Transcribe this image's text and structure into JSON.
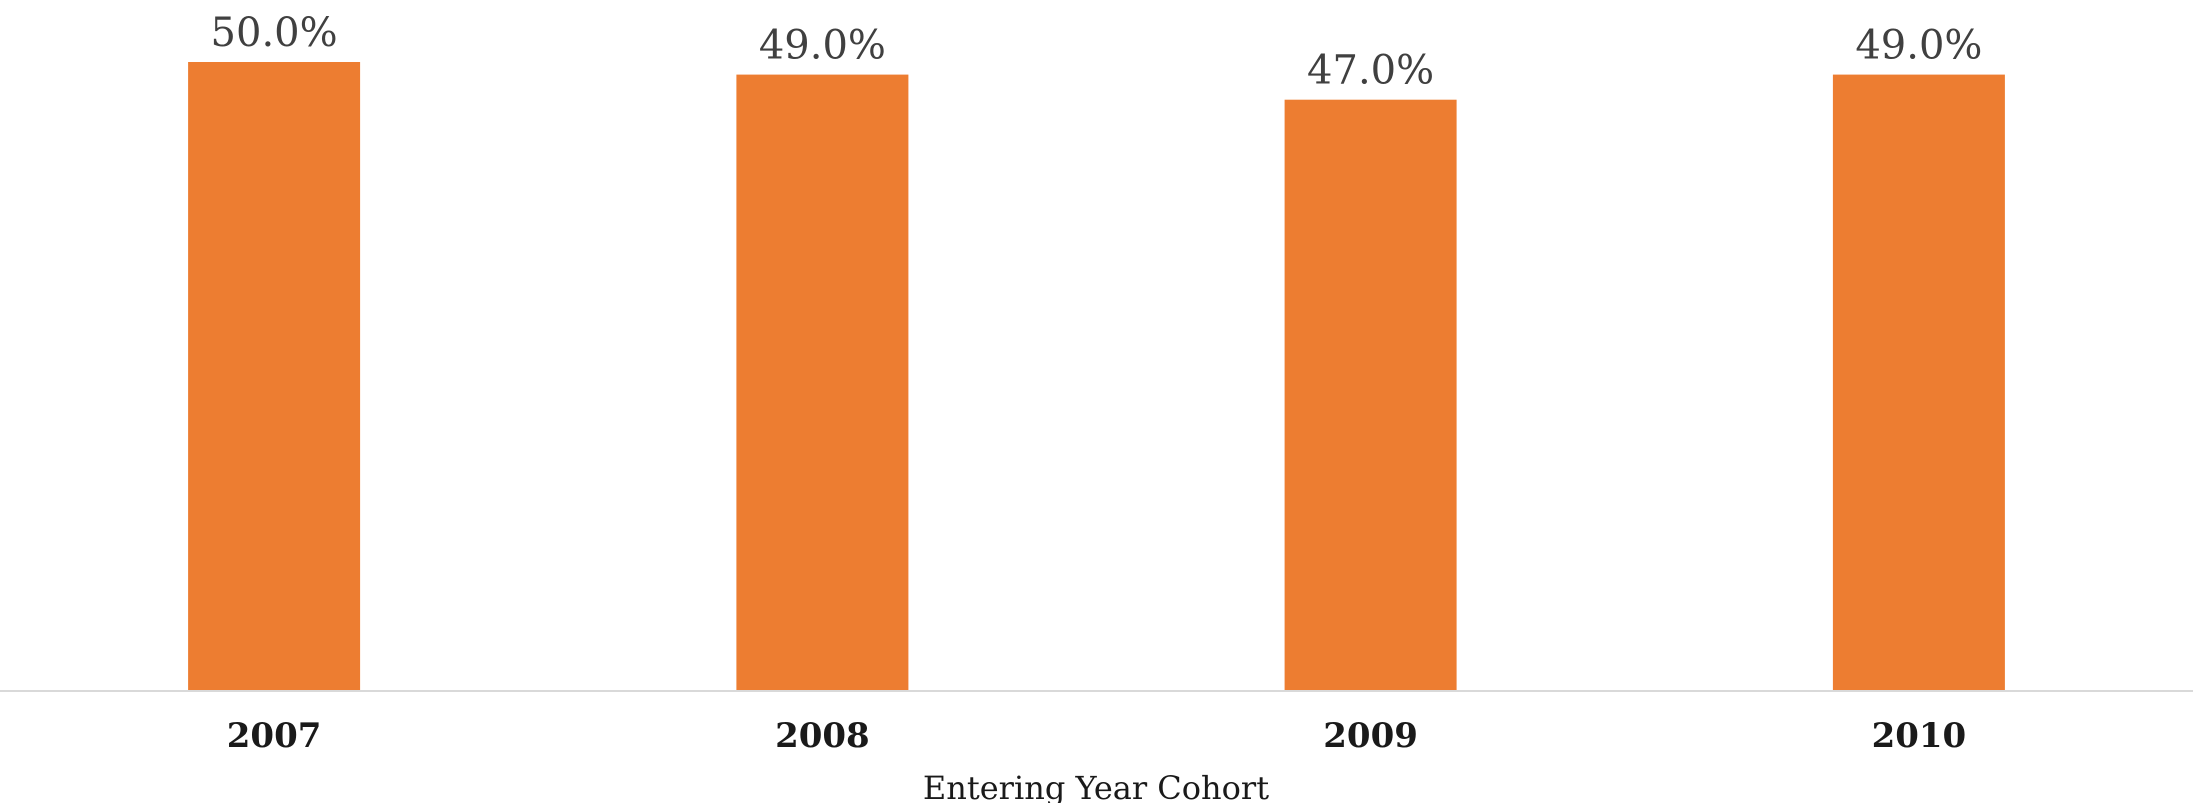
{
  "chart_data": {
    "type": "bar",
    "categories": [
      "2007",
      "2008",
      "2009",
      "2010"
    ],
    "values": [
      50.0,
      49.0,
      47.0,
      49.0
    ],
    "data_labels": [
      "50.0%",
      "49.0%",
      "47.0%",
      "49.0%"
    ],
    "xlabel": "Entering Year Cohort",
    "ylabel": "",
    "ylim": [
      0,
      50
    ],
    "grid": false,
    "legend": "none",
    "colors": {
      "bar": "#ED7D31",
      "axis": "#D9D9D9"
    }
  }
}
